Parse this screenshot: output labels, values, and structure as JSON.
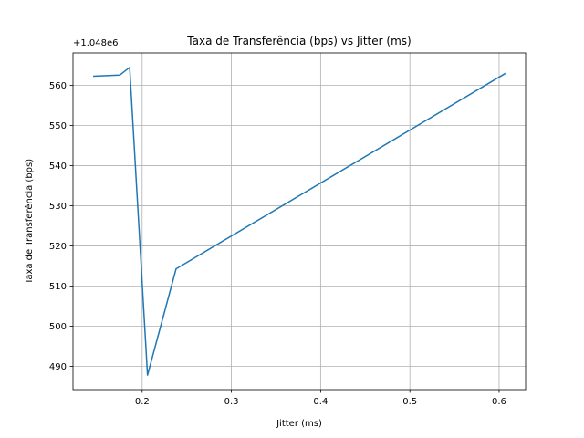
{
  "chart_data": {
    "type": "line",
    "title": "Taxa de Transferência (bps) vs Jitter (ms)",
    "xlabel": "Jitter (ms)",
    "ylabel": "Taxa de Transferência (bps)",
    "y_offset_text": "+1.048e6",
    "y_offset_value": 1048000,
    "xlim": [
      0.1225,
      0.6297
    ],
    "ylim": [
      484.2,
      568.1
    ],
    "xticks": [
      0.2,
      0.3,
      0.4,
      0.5,
      0.6
    ],
    "xtick_labels": [
      "0.2",
      "0.3",
      "0.4",
      "0.5",
      "0.6"
    ],
    "yticks": [
      490,
      500,
      510,
      520,
      530,
      540,
      550,
      560
    ],
    "ytick_labels": [
      "490",
      "500",
      "510",
      "520",
      "530",
      "540",
      "550",
      "560"
    ],
    "grid": true,
    "series": [
      {
        "color": "#1f77b4",
        "x": [
          0.145,
          0.175,
          0.186,
          0.206,
          0.238,
          0.607
        ],
        "y": [
          562.3,
          562.6,
          564.5,
          487.8,
          514.3,
          563.0
        ]
      }
    ]
  }
}
